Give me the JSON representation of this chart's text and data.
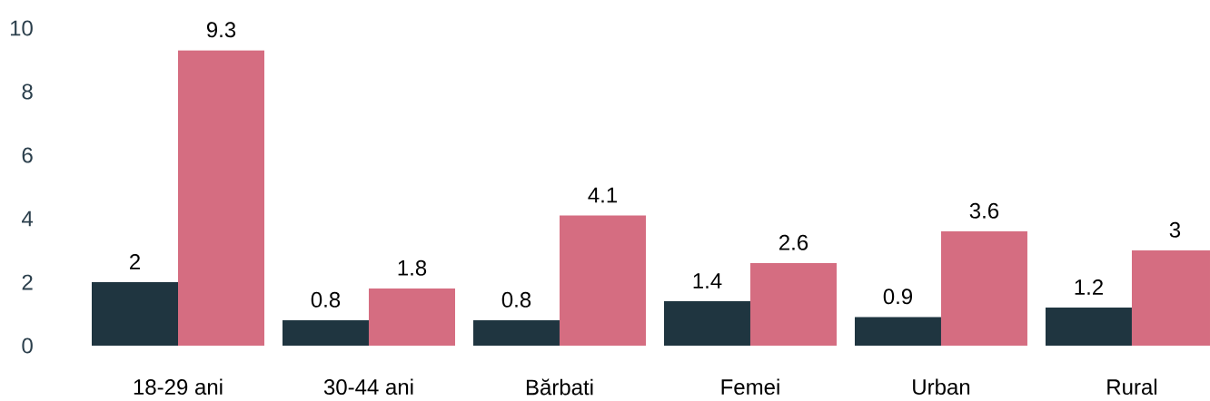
{
  "chart_data": {
    "type": "bar",
    "categories": [
      "18-29 ani",
      "30-44 ani",
      "Bărbati",
      "Femei",
      "Urban",
      "Rural"
    ],
    "series": [
      {
        "color": "#1f3540",
        "values": [
          2,
          0.8,
          0.8,
          1.4,
          0.9,
          1.2
        ]
      },
      {
        "color": "#d56d81",
        "values": [
          9.3,
          1.8,
          4.1,
          2.6,
          3.6,
          3
        ]
      }
    ],
    "ylim": [
      0,
      10
    ],
    "yticks": [
      0,
      2,
      4,
      6,
      8,
      10
    ],
    "data_labels": true,
    "grid": false
  }
}
